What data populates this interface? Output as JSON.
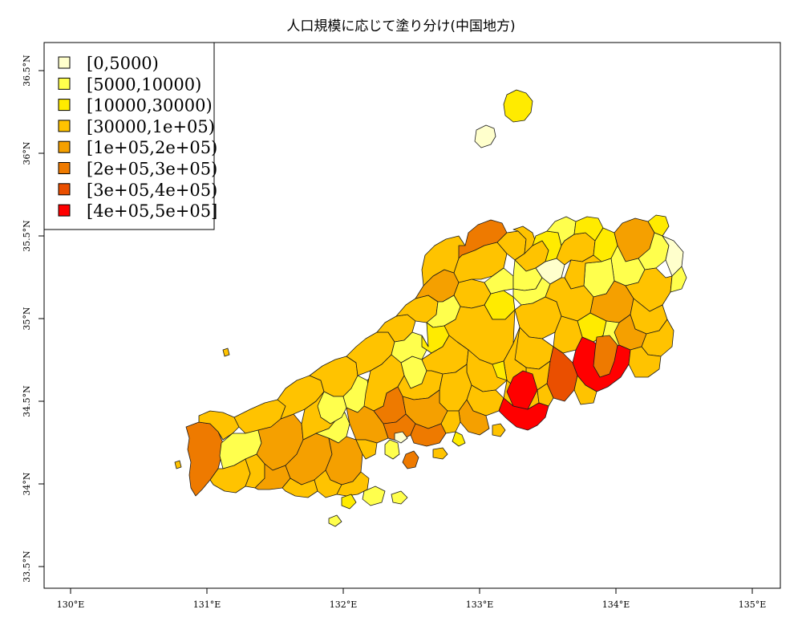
{
  "title": "人口規模に応じて塗り分け(中国地方)",
  "colors": {
    "c0": "#FFFFCC",
    "c1": "#FFFF4D",
    "c2": "#FFEB00",
    "c3": "#FFC300",
    "c4": "#F5A000",
    "c5": "#EE7A00",
    "c6": "#EA4F00",
    "c7": "#FF0000"
  },
  "legend": {
    "placement": "top-left",
    "items": [
      {
        "label": "[0,5000)",
        "color": "#FFFFCC"
      },
      {
        "label": "[5000,10000)",
        "color": "#FFFF4D"
      },
      {
        "label": "[10000,30000)",
        "color": "#FFEB00"
      },
      {
        "label": "[30000,1e+05)",
        "color": "#FFC300"
      },
      {
        "label": "[1e+05,2e+05)",
        "color": "#F5A000"
      },
      {
        "label": "[2e+05,3e+05)",
        "color": "#EE7A00"
      },
      {
        "label": "[3e+05,4e+05)",
        "color": "#EA4F00"
      },
      {
        "label": "[4e+05,5e+05]",
        "color": "#FF0000"
      }
    ]
  },
  "axes": {
    "x": {
      "range": [
        129.9,
        135.2
      ],
      "ticks": [
        {
          "value": 130,
          "label": "130°E"
        },
        {
          "value": 131,
          "label": "131°E"
        },
        {
          "value": 132,
          "label": "132°E"
        },
        {
          "value": 133,
          "label": "133°E"
        },
        {
          "value": 134,
          "label": "134°E"
        },
        {
          "value": 135,
          "label": "135°E"
        }
      ]
    },
    "y": {
      "range": [
        33.35,
        36.6
      ],
      "ticks": [
        {
          "value": 33.5,
          "label": "33.5°N"
        },
        {
          "value": 34,
          "label": "34°N"
        },
        {
          "value": 34.5,
          "label": "34.5°N"
        },
        {
          "value": 35,
          "label": "35°N"
        },
        {
          "value": 35.5,
          "label": "35.5°N"
        },
        {
          "value": 36,
          "label": "36°N"
        },
        {
          "value": 36.5,
          "label": "36.5°N"
        }
      ]
    }
  }
}
